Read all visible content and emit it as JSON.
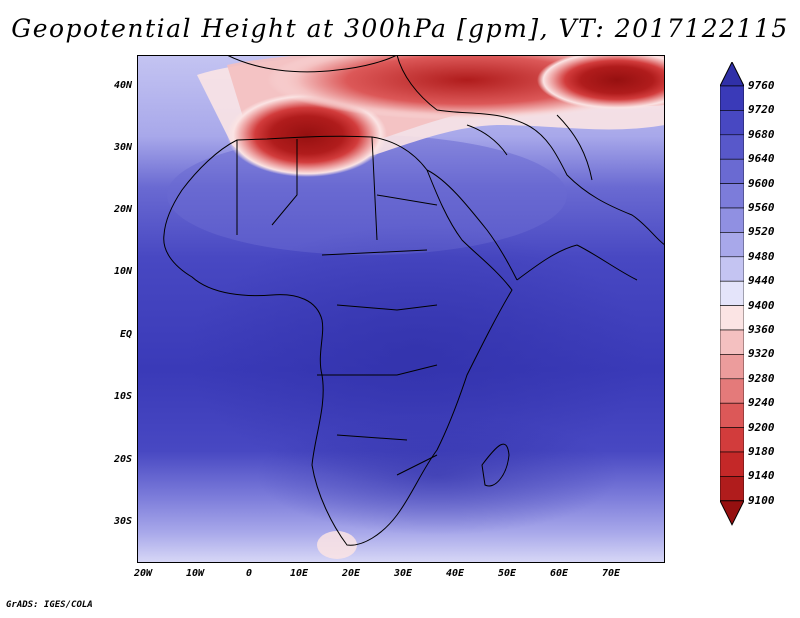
{
  "title": "Geopotential Height at 300hPa [gpm], VT: 2017122115",
  "footer": "GrADS: IGES/COLA",
  "lat_labels": [
    "40N",
    "30N",
    "20N",
    "10N",
    "EQ",
    "10S",
    "20S",
    "30S"
  ],
  "lon_labels": [
    "20W",
    "10W",
    "0",
    "10E",
    "20E",
    "30E",
    "40E",
    "50E",
    "60E",
    "70E"
  ],
  "colorbar": {
    "levels": [
      "9760",
      "9720",
      "9680",
      "9640",
      "9600",
      "9560",
      "9520",
      "9480",
      "9440",
      "9400",
      "9360",
      "9320",
      "9280",
      "9240",
      "9200",
      "9180",
      "9140",
      "9100"
    ],
    "colors": [
      "#3030a8",
      "#3a3ab8",
      "#4848c2",
      "#5858ca",
      "#6a6ad2",
      "#7c7cda",
      "#9090e2",
      "#a8a8ea",
      "#c4c4f2",
      "#e4e4fa",
      "#fbe4e4",
      "#f4c0c0",
      "#ec9c9c",
      "#e47a7a",
      "#dc5858",
      "#d23c3c",
      "#c42828",
      "#b01c1c",
      "#961010"
    ]
  }
}
